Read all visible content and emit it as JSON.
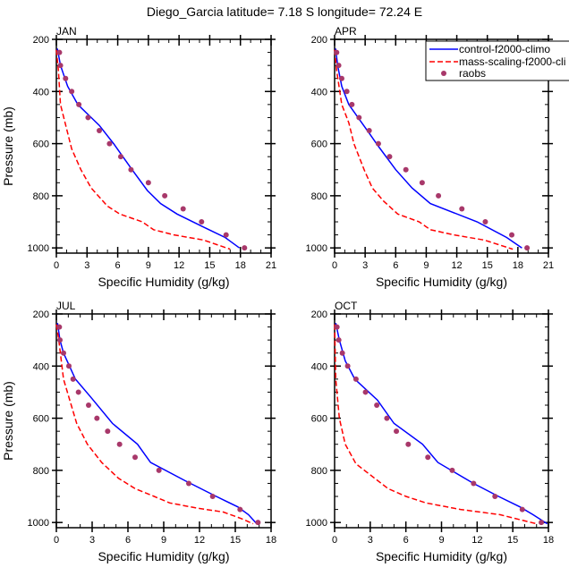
{
  "chart_data": {
    "type": "line",
    "title": "Diego_Garcia  latitude= 7.18 S longitude= 72.24 E",
    "legend": {
      "placement": "top-right of APR panel",
      "entries": [
        "control-f2000-climo",
        "mass-scaling-f2000-cli",
        "raobs"
      ]
    },
    "colors": {
      "control": "#0000ff",
      "mass_scaling": "#ff0000",
      "raobs": "#a8386a"
    },
    "ylabel": "Pressure (mb)",
    "xlabel": "Specific Humidity (g/kg)",
    "y_reversed": true,
    "panels": [
      {
        "label": "JAN",
        "xlim": [
          0,
          21
        ],
        "xticks": [
          0,
          3,
          6,
          9,
          12,
          15,
          18,
          21
        ],
        "ylim": [
          200,
          1020
        ],
        "yticks": [
          200,
          400,
          600,
          800,
          1000
        ],
        "series": [
          {
            "name": "control-f2000-climo",
            "style": "solid",
            "p": [
              235,
              300,
              380,
              450,
              500,
              530,
              600,
              700,
              780,
              830,
              870,
              920,
              960,
              1000
            ],
            "q": [
              0.1,
              0.4,
              1.1,
              2.1,
              3.4,
              4.2,
              5.6,
              7.4,
              8.9,
              10.2,
              11.8,
              14.4,
              16.5,
              17.9
            ]
          },
          {
            "name": "mass-scaling-f2000-cli",
            "style": "dashed",
            "p": [
              240,
              320,
              450,
              620,
              700,
              770,
              840,
              870,
              900,
              930,
              950,
              970,
              1005
            ],
            "q": [
              0,
              0.2,
              0.4,
              1.5,
              2.4,
              3.4,
              5.0,
              6.2,
              8.4,
              9.5,
              11.5,
              14.4,
              17.0
            ]
          },
          {
            "name": "raobs",
            "style": "markers",
            "p": [
              250,
              300,
              350,
              400,
              450,
              500,
              550,
              600,
              650,
              700,
              750,
              800,
              850,
              900,
              950,
              1000
            ],
            "q": [
              0.3,
              0.4,
              0.9,
              1.5,
              2.2,
              3.1,
              4.2,
              5.2,
              6.3,
              7.3,
              9.0,
              10.6,
              12.4,
              14.2,
              16.6,
              18.4
            ]
          }
        ]
      },
      {
        "label": "APR",
        "xlim": [
          0,
          21
        ],
        "xticks": [
          0,
          3,
          6,
          9,
          12,
          15,
          18,
          21
        ],
        "ylim": [
          200,
          1020
        ],
        "yticks": [
          200,
          400,
          600,
          800,
          1000
        ],
        "series": [
          {
            "name": "control-f2000-climo",
            "style": "solid",
            "p": [
              235,
              300,
              380,
              450,
              500,
              560,
              610,
              700,
              770,
              830,
              900,
              960,
              1000
            ],
            "q": [
              0.1,
              0.3,
              0.7,
              1.4,
              2.3,
              3.4,
              4.3,
              6.0,
              7.6,
              9.4,
              14.0,
              16.9,
              18.4
            ]
          },
          {
            "name": "mass-scaling-f2000-cli",
            "style": "dashed",
            "p": [
              240,
              320,
              450,
              520,
              600,
              700,
              770,
              820,
              870,
              900,
              930,
              950,
              970,
              1005
            ],
            "q": [
              0,
              0.2,
              0.7,
              1.4,
              1.9,
              2.9,
              3.7,
              4.8,
              6.2,
              8.3,
              9.4,
              11.7,
              14.7,
              17.5
            ]
          },
          {
            "name": "raobs",
            "style": "markers",
            "p": [
              250,
              300,
              350,
              400,
              450,
              500,
              550,
              600,
              650,
              700,
              750,
              800,
              850,
              900,
              950,
              1000
            ],
            "q": [
              0.2,
              0.4,
              0.7,
              1.2,
              1.7,
              2.4,
              3.4,
              4.3,
              5.4,
              7.0,
              8.6,
              10.2,
              12.5,
              14.8,
              17.4,
              18.9
            ]
          }
        ]
      },
      {
        "label": "JUL",
        "xlim": [
          0,
          18
        ],
        "xticks": [
          0,
          3,
          6,
          9,
          12,
          15,
          18
        ],
        "ylim": [
          200,
          1020
        ],
        "yticks": [
          200,
          400,
          600,
          800,
          1000
        ],
        "series": [
          {
            "name": "control-f2000-climo",
            "style": "solid",
            "p": [
              235,
              300,
              350,
              450,
              520,
              620,
              700,
              770,
              840,
              900,
              940,
              970,
              1005
            ],
            "q": [
              0.1,
              0.3,
              0.6,
              1.6,
              2.9,
              4.7,
              6.8,
              7.9,
              10.8,
              13.4,
              15.2,
              16.1,
              16.8
            ]
          },
          {
            "name": "mass-scaling-f2000-cli",
            "style": "dashed",
            "p": [
              240,
              300,
              450,
              620,
              700,
              770,
              830,
              870,
              900,
              925,
              945,
              960,
              985,
              1005
            ],
            "q": [
              0,
              0.2,
              0.6,
              1.7,
              2.6,
              3.8,
              5.2,
              6.6,
              8.2,
              9.5,
              11.8,
              14.0,
              15.5,
              16.5
            ]
          },
          {
            "name": "raobs",
            "style": "markers",
            "p": [
              250,
              300,
              350,
              400,
              450,
              500,
              550,
              600,
              650,
              700,
              750,
              800,
              850,
              900,
              950,
              1000
            ],
            "q": [
              0.25,
              0.3,
              0.6,
              1.05,
              1.4,
              1.85,
              2.7,
              3.4,
              4.3,
              5.3,
              6.6,
              8.6,
              11.1,
              13.1,
              15.4,
              16.9
            ]
          }
        ]
      },
      {
        "label": "OCT",
        "xlim": [
          0,
          18
        ],
        "xticks": [
          0,
          3,
          6,
          9,
          12,
          15,
          18
        ],
        "ylim": [
          200,
          1020
        ],
        "yticks": [
          200,
          400,
          600,
          800,
          1000
        ],
        "series": [
          {
            "name": "control-f2000-climo",
            "style": "solid",
            "p": [
              235,
              300,
              380,
              450,
              530,
              620,
              700,
              770,
              850,
              900,
              940,
              970,
              1005
            ],
            "q": [
              0.1,
              0.4,
              0.9,
              1.7,
              3.6,
              5.0,
              7.4,
              8.7,
              11.7,
              13.8,
              15.6,
              16.7,
              17.9
            ]
          },
          {
            "name": "mass-scaling-f2000-cli",
            "style": "dashed",
            "p": [
              240,
              450,
              600,
              700,
              775,
              870,
              900,
              925,
              950,
              970,
              1005
            ],
            "q": [
              0,
              0.1,
              0.4,
              0.9,
              1.8,
              4.5,
              6.0,
              7.7,
              10.6,
              13.9,
              17.0
            ]
          },
          {
            "name": "raobs",
            "style": "markers",
            "p": [
              250,
              300,
              350,
              400,
              450,
              500,
              550,
              600,
              650,
              700,
              750,
              800,
              850,
              900,
              950,
              1000
            ],
            "q": [
              0.2,
              0.35,
              0.65,
              1.1,
              1.8,
              2.6,
              3.55,
              4.4,
              5.2,
              6.2,
              7.85,
              9.9,
              11.7,
              13.5,
              15.8,
              17.4
            ]
          }
        ]
      }
    ]
  }
}
